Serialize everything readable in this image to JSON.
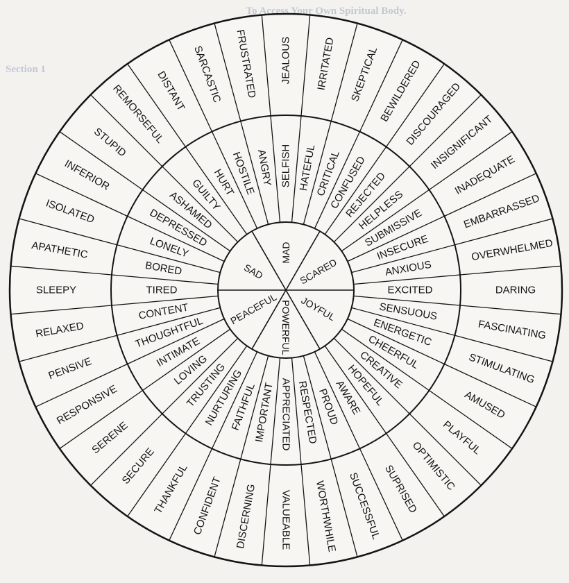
{
  "background_text": {
    "line_top": "To Access Your Own Spiritual Body.",
    "line_section": "Section 1"
  },
  "wheel": {
    "core": [
      "MAD",
      "SCARED",
      "JOYFUL",
      "POWERFUL",
      "PEACEFUL",
      "SAD"
    ],
    "middle": [
      "HOSTILE",
      "ANGRY",
      "SELFISH",
      "HATEFUL",
      "CRITICAL",
      "CONFUSED",
      "REJECTED",
      "HELPLESS",
      "SUBMISSIVE",
      "INSECURE",
      "ANXIOUS",
      "EXCITED",
      "SENSUOUS",
      "ENERGETIC",
      "CHEERFUL",
      "CREATIVE",
      "HOPEFUL",
      "AWARE",
      "PROUD",
      "RESPECTED",
      "APPRECIATED",
      "IMPORTANT",
      "FAITHFUL",
      "NURTURING",
      "TRUSTING",
      "LOVING",
      "INTIMATE",
      "THOUGHTFUL",
      "CONTENT",
      "TIRED",
      "BORED",
      "LONELY",
      "DEPRESSED",
      "ASHAMED",
      "GUILTY",
      "HURT"
    ],
    "outer": [
      "FRUSTRATED",
      "JEALOUS",
      "IRRITATED",
      "SKEPTICAL",
      "BEWILDERED",
      "DISCOURAGED",
      "INSIGNIFICANT",
      "INADEQUATE",
      "EMBARRASSED",
      "OVERWHELMED",
      "DARING",
      "FASCINATING",
      "STIMULATING",
      "AMUSED",
      "PLAYFUL",
      "OPTIMISTIC",
      "SUPRISED",
      "SUCCESSFUL",
      "WORTHWHILE",
      "VALUEABLE",
      "DISCERNING",
      "CONFIDENT",
      "THANKFUL",
      "SECURE",
      "SERENE",
      "RESPONSIVE",
      "PENSIVE",
      "RELAXED",
      "SLEEPY",
      "APATHETIC",
      "ISOLATED",
      "INFERIOR",
      "STUPID",
      "REMORSEFUL",
      "DISTANT",
      "SARCASTIC"
    ]
  },
  "colors": {
    "ink": "#141414",
    "paper": "#f3f2ef",
    "bleed": "#9aa6bf"
  }
}
